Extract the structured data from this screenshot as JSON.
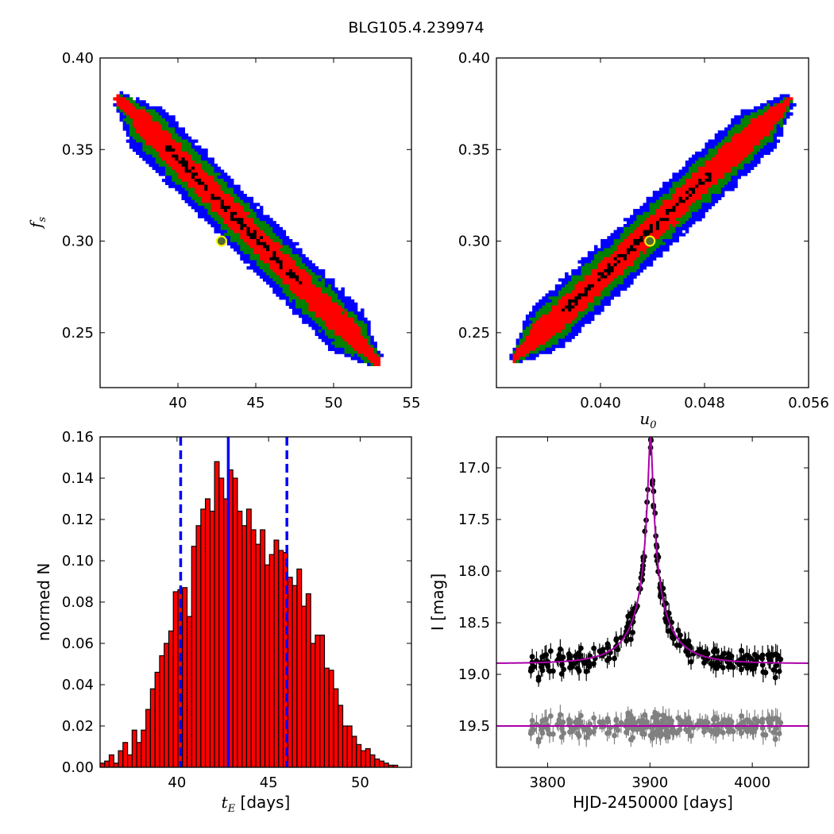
{
  "title": "BLG105.4.239974",
  "chart_data": [
    {
      "type": "heatmap",
      "id": "fs_vs_tE",
      "xlabel": "",
      "ylabel": "f_s",
      "xlim": [
        35,
        55
      ],
      "ylim": [
        0.22,
        0.4
      ],
      "xticks": [
        "40",
        "45",
        "50",
        "55"
      ],
      "yticks": [
        "0.25",
        "0.30",
        "0.35",
        "0.40"
      ],
      "best_fit": {
        "x": 42.8,
        "y": 0.3
      },
      "ridge": {
        "x0": 36.2,
        "y0": 0.378,
        "x1": 52.8,
        "y1": 0.234
      },
      "levels": [
        {
          "name": "blue",
          "color": "#0000ff",
          "halfwidth": 0.0135
        },
        {
          "name": "green",
          "color": "#008000",
          "halfwidth": 0.0098
        },
        {
          "name": "red",
          "color": "#ff0000",
          "halfwidth": 0.006
        },
        {
          "name": "black",
          "color": "#000000",
          "halfwidth": 0.0018
        }
      ]
    },
    {
      "type": "heatmap",
      "id": "fs_vs_u0",
      "xlabel": "u_0",
      "ylabel": "",
      "xlim": [
        0.032,
        0.056
      ],
      "ylim": [
        0.22,
        0.4
      ],
      "xticks": [
        "0.040",
        "0.048",
        "0.056"
      ],
      "yticks": [
        "0.25",
        "0.30",
        "0.35",
        "0.40"
      ],
      "best_fit": {
        "x": 0.0438,
        "y": 0.3
      },
      "ridge": {
        "x0": 0.0334,
        "y0": 0.236,
        "x1": 0.0545,
        "y1": 0.377
      },
      "levels": [
        {
          "name": "blue",
          "color": "#0000ff",
          "halfwidth": 0.0135
        },
        {
          "name": "green",
          "color": "#008000",
          "halfwidth": 0.0098
        },
        {
          "name": "red",
          "color": "#ff0000",
          "halfwidth": 0.006
        },
        {
          "name": "black",
          "color": "#000000",
          "halfwidth": 0.0018
        }
      ]
    },
    {
      "type": "bar",
      "id": "tE_histogram",
      "xlabel": "t_E [days]",
      "ylabel": "normed N",
      "xlim": [
        35.8,
        52.8
      ],
      "ylim": [
        0,
        0.16
      ],
      "xticks": [
        "40",
        "45",
        "50"
      ],
      "yticks": [
        "0.00",
        "0.02",
        "0.04",
        "0.06",
        "0.08",
        "0.10",
        "0.12",
        "0.14",
        "0.16"
      ],
      "bin_start": 35.8,
      "bin_width": 0.25,
      "values": [
        0.002,
        0.003,
        0.006,
        0.002,
        0.008,
        0.012,
        0.006,
        0.018,
        0.012,
        0.018,
        0.028,
        0.038,
        0.046,
        0.054,
        0.06,
        0.066,
        0.085,
        0.086,
        0.087,
        0.073,
        0.107,
        0.117,
        0.125,
        0.13,
        0.124,
        0.148,
        0.14,
        0.13,
        0.144,
        0.14,
        0.124,
        0.117,
        0.125,
        0.115,
        0.108,
        0.115,
        0.098,
        0.103,
        0.11,
        0.105,
        0.104,
        0.092,
        0.088,
        0.096,
        0.078,
        0.084,
        0.06,
        0.064,
        0.064,
        0.048,
        0.047,
        0.038,
        0.03,
        0.02,
        0.02,
        0.015,
        0.011,
        0.008,
        0.009,
        0.006,
        0.004,
        0.003,
        0.002,
        0.001,
        0.001
      ],
      "bar_color": "#ff0000",
      "median": 42.8,
      "lower": 40.2,
      "upper": 46.0,
      "line_color": "#0000ff"
    },
    {
      "type": "scatter",
      "id": "light_curve",
      "xlabel": "HJD-2450000 [days]",
      "ylabel": "I [mag]",
      "xlim": [
        3750,
        4055
      ],
      "ylim": [
        19.9,
        16.7
      ],
      "xticks": [
        "3800",
        "3900",
        "4000"
      ],
      "yticks": [
        "17.0",
        "17.5",
        "18.0",
        "18.5",
        "19.0",
        "19.5"
      ],
      "model": {
        "t0": 3900.5,
        "tE": 42.8,
        "u0": 0.0438,
        "fs": 0.3,
        "baseline": 18.895
      },
      "residual_baseline": 19.5,
      "data_range": [
        3783,
        4028
      ],
      "data_color": "#000000",
      "residual_color": "#808080",
      "model_color": "#aa00aa",
      "n_points": 260
    }
  ]
}
